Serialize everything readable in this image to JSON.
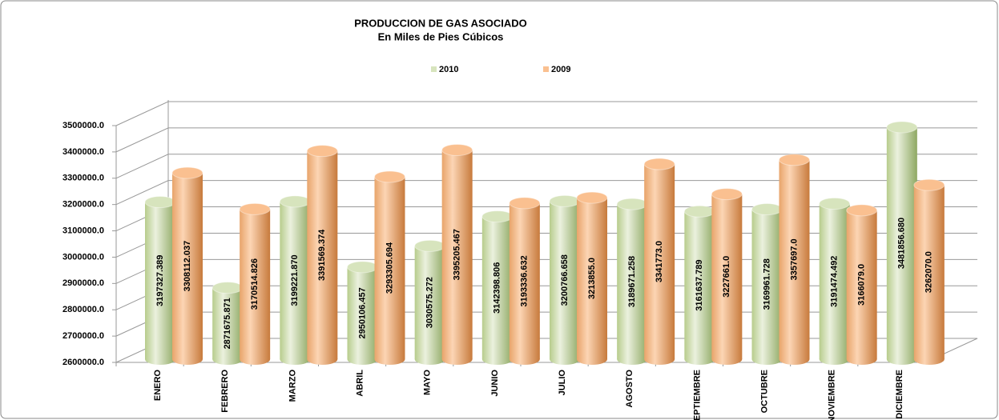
{
  "chart_data": {
    "type": "bar3d",
    "title": "PRODUCCION DE GAS ASOCIADO",
    "subtitle": "En Miles de Pies Cúbicos",
    "categories": [
      "ENERO",
      "FEBRERO",
      "MARZO",
      "ABRIL",
      "MAYO",
      "JUNIO",
      "JULIO",
      "AGOSTO",
      "SEPTIEMBRE",
      "OCTUBRE",
      "NOVIEMBRE",
      "DICIEMBRE"
    ],
    "series": [
      {
        "name": "2010",
        "color": "#d7e4bd",
        "values": [
          3197327.389,
          2871675.871,
          3199221.87,
          2950106.457,
          3030575.272,
          3142398.806,
          3200766.658,
          3189671.258,
          3161637.789,
          3169961.728,
          3191474.492,
          3481856.68
        ],
        "value_labels": [
          "3197327.389",
          "2871675.871",
          "3199221.870",
          "2950106.457",
          "3030575.272",
          "3142398.806",
          "3200766.658",
          "3189671.258",
          "3161637.789",
          "3169961.728",
          "3191474.492",
          "3481856.680"
        ]
      },
      {
        "name": "2009",
        "color": "#fac090",
        "values": [
          3308112.037,
          3170514.826,
          3391569.374,
          3293305.694,
          3395205.467,
          3193336.632,
          3213855.0,
          3341773.0,
          3227661.0,
          3357697.0,
          3166079.0,
          3262070.0
        ],
        "value_labels": [
          "3308112.037",
          "3170514.826",
          "3391569.374",
          "3293305.694",
          "3395205.467",
          "3193336.632",
          "3213855.0",
          "3341773.0",
          "3227661.0",
          "3357697.0",
          "3166079.0",
          "3262070.0"
        ]
      }
    ],
    "ylim": [
      2600000,
      3500000
    ],
    "yticks": [
      {
        "value": 2600000,
        "label": "2600000.0"
      },
      {
        "value": 2700000,
        "label": "2700000.0"
      },
      {
        "value": 2800000,
        "label": "2800000.0"
      },
      {
        "value": 2900000,
        "label": "2900000.0"
      },
      {
        "value": 3000000,
        "label": "3000000.0"
      },
      {
        "value": 3100000,
        "label": "3100000.0"
      },
      {
        "value": 3200000,
        "label": "3200000.0"
      },
      {
        "value": 3300000,
        "label": "3300000.0"
      },
      {
        "value": 3400000,
        "label": "3400000.0"
      },
      {
        "value": 3500000,
        "label": "3500000.0"
      }
    ],
    "grid": true,
    "legend": "top"
  }
}
